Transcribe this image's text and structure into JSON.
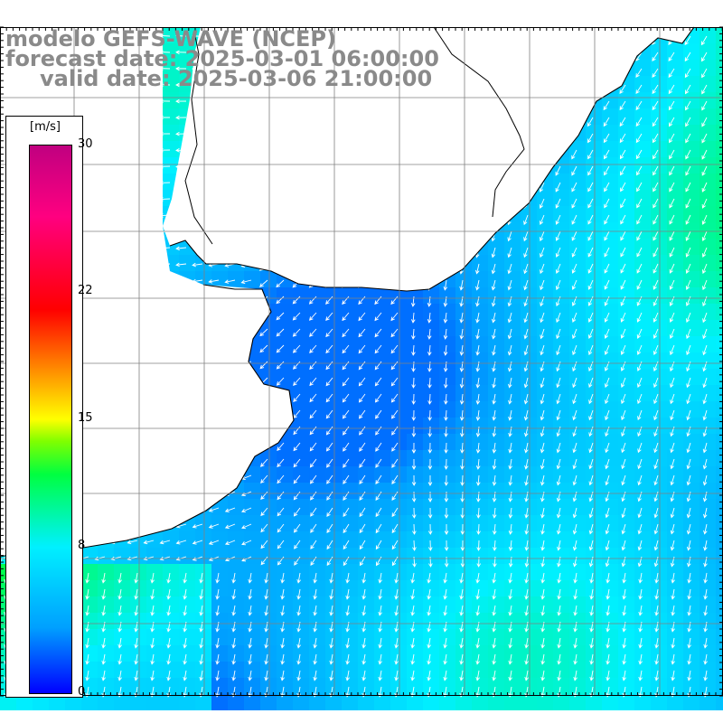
{
  "title": {
    "line1": "modelo GEFS-WAVE (NCEP)",
    "line2": "forecast date: 2025-03-01 06:00:00",
    "line3": "valid date: 2025-03-06 21:00:00"
  },
  "colorbar": {
    "unit": "[m/s]",
    "ticks": [
      "30",
      "22",
      "15",
      "8",
      "0"
    ],
    "tick_values": [
      30,
      22,
      15,
      8,
      0
    ],
    "range": [
      0,
      30
    ],
    "colors": [
      "#0000ff",
      "#00a0ff",
      "#00f0ff",
      "#00ff40",
      "#80ff00",
      "#ffff00",
      "#ff8000",
      "#ff0000",
      "#ff0080",
      "#c00080"
    ]
  },
  "map": {
    "land_color": "#ffffff",
    "coastline_color": "#000000",
    "grid_color": "#808080",
    "arrow_color": "#ffffff",
    "field": "wind speed and direction",
    "prevailing_direction": "southwest-bound (from northeast)"
  }
}
